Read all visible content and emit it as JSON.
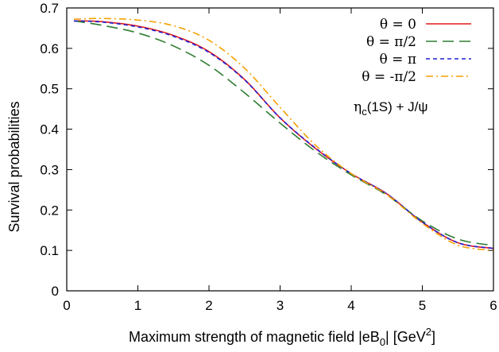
{
  "chart_data": {
    "type": "line",
    "xlabel": "Maximum strength of magnetic field |eB",
    "xlabel_sub": "0",
    "xlabel_tail": "| [GeV",
    "xlabel_sup": "2",
    "xlabel_end": "]",
    "ylabel": "Survival probabilities",
    "xlim": [
      0,
      6
    ],
    "ylim": [
      0,
      0.7
    ],
    "x_ticks": [
      "0",
      "1",
      "2",
      "3",
      "4",
      "5",
      "6"
    ],
    "y_ticks": [
      "0",
      "0.1",
      "0.2",
      "0.3",
      "0.4",
      "0.5",
      "0.6",
      "0.7"
    ],
    "grid": false,
    "legend_position": "top-right",
    "annotation": {
      "base": "η",
      "sub": "c",
      "tail": "(1S) + J/ψ"
    },
    "series": [
      {
        "name": "θ =   0",
        "color": "#e41a1c",
        "dash": "solid",
        "x": [
          0.1,
          0.5,
          1.0,
          1.5,
          2.0,
          2.5,
          3.0,
          3.5,
          4.0,
          4.5,
          5.0,
          5.5,
          6.0
        ],
        "y": [
          0.668,
          0.666,
          0.655,
          0.632,
          0.592,
          0.523,
          0.428,
          0.352,
          0.29,
          0.24,
          0.17,
          0.119,
          0.105
        ]
      },
      {
        "name": "θ =  π/2",
        "color": "#2e7d32",
        "dash": "long",
        "x": [
          0.1,
          0.5,
          1.0,
          1.5,
          2.0,
          2.5,
          3.0,
          3.5,
          4.0,
          4.5,
          5.0,
          5.5,
          6.0
        ],
        "y": [
          0.668,
          0.657,
          0.638,
          0.606,
          0.558,
          0.49,
          0.415,
          0.345,
          0.287,
          0.237,
          0.173,
          0.128,
          0.112
        ]
      },
      {
        "name": "θ =   π",
        "color": "#1f1fd6",
        "dash": "short",
        "x": [
          0.1,
          0.5,
          1.0,
          1.5,
          2.0,
          2.5,
          3.0,
          3.5,
          4.0,
          4.5,
          5.0,
          5.5,
          6.0
        ],
        "y": [
          0.668,
          0.665,
          0.653,
          0.63,
          0.59,
          0.522,
          0.428,
          0.353,
          0.29,
          0.24,
          0.17,
          0.119,
          0.105
        ]
      },
      {
        "name": "θ = -π/2",
        "color": "#f5a000",
        "dash": "dashdot",
        "x": [
          0.1,
          0.5,
          1.0,
          1.5,
          2.0,
          2.5,
          3.0,
          3.5,
          4.0,
          4.5,
          5.0,
          5.5,
          6.0
        ],
        "y": [
          0.672,
          0.674,
          0.67,
          0.656,
          0.62,
          0.551,
          0.454,
          0.36,
          0.29,
          0.238,
          0.167,
          0.113,
          0.1
        ]
      }
    ]
  }
}
